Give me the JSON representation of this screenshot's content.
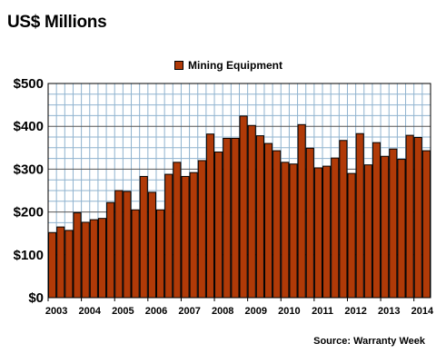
{
  "chart_data": {
    "type": "bar",
    "title": "US$ Millions",
    "xlabel": "",
    "ylabel": "",
    "source": "Source: Warranty Week",
    "ylim": [
      0,
      500
    ],
    "y_ticks": [
      0,
      100,
      200,
      300,
      400,
      500
    ],
    "y_tick_labels": [
      "$0",
      "$100",
      "$200",
      "$300",
      "$400",
      "$500"
    ],
    "x_tick_labels": [
      "2003",
      "2004",
      "2005",
      "2006",
      "2007",
      "2008",
      "2009",
      "2010",
      "2011",
      "2012",
      "2013",
      "2014"
    ],
    "grid": true,
    "legend_position": "top",
    "bar_color": "#b03a08",
    "categories": [
      "2003 Q1",
      "2003 Q2",
      "2003 Q3",
      "2003 Q4",
      "2004 Q1",
      "2004 Q2",
      "2004 Q3",
      "2004 Q4",
      "2005 Q1",
      "2005 Q2",
      "2005 Q3",
      "2005 Q4",
      "2006 Q1",
      "2006 Q2",
      "2006 Q3",
      "2006 Q4",
      "2007 Q1",
      "2007 Q2",
      "2007 Q3",
      "2007 Q4",
      "2008 Q1",
      "2008 Q2",
      "2008 Q3",
      "2008 Q4",
      "2009 Q1",
      "2009 Q2",
      "2009 Q3",
      "2009 Q4",
      "2010 Q1",
      "2010 Q2",
      "2010 Q3",
      "2010 Q4",
      "2011 Q1",
      "2011 Q2",
      "2011 Q3",
      "2011 Q4",
      "2012 Q1",
      "2012 Q2",
      "2012 Q3",
      "2012 Q4",
      "2013 Q1",
      "2013 Q2",
      "2013 Q3",
      "2013 Q4",
      "2014 Q1",
      "2014 Q2"
    ],
    "series": [
      {
        "name": "Mining Equipment",
        "values": [
          152,
          165,
          157,
          198,
          176,
          182,
          185,
          222,
          250,
          248,
          205,
          283,
          246,
          205,
          288,
          316,
          283,
          292,
          320,
          382,
          340,
          372,
          372,
          424,
          402,
          378,
          360,
          343,
          316,
          312,
          404,
          349,
          303,
          307,
          326,
          367,
          290,
          383,
          310,
          362,
          330,
          347,
          323,
          379,
          374,
          343
        ]
      }
    ]
  }
}
